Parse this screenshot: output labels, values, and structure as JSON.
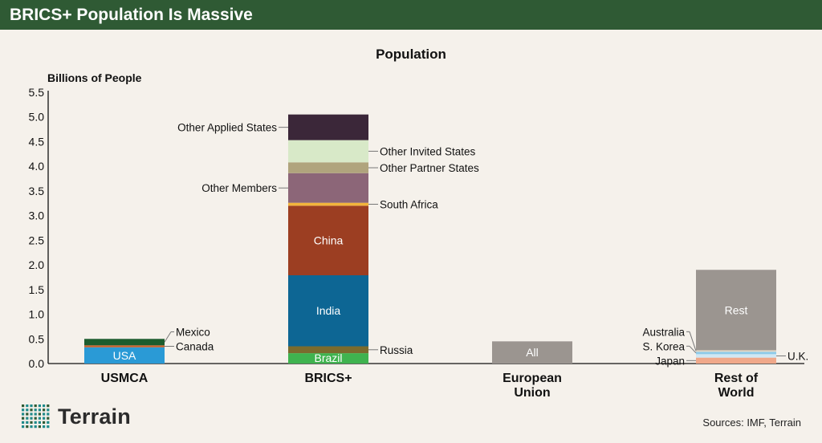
{
  "banner": {
    "title": "BRICS+ Population Is Massive"
  },
  "chart_data": {
    "type": "bar",
    "stacked": true,
    "title": "Population",
    "ylabel": "Billions of People",
    "xlabel": "",
    "ylim": [
      0,
      5.5
    ],
    "yticks": [
      "0.0",
      "0.5",
      "1.0",
      "1.5",
      "2.0",
      "2.5",
      "3.0",
      "3.5",
      "4.0",
      "4.5",
      "5.0",
      "5.5"
    ],
    "grid": false,
    "groups": [
      {
        "label": [
          "USMCA"
        ],
        "segments": [
          {
            "name": "USA",
            "value": 0.33,
            "color": "#2a9ad6",
            "label": "USA",
            "label_pos": "inside"
          },
          {
            "name": "Canada",
            "value": 0.04,
            "color": "#c8612b",
            "label": "Canada",
            "label_pos": "right"
          },
          {
            "name": "Mexico",
            "value": 0.13,
            "color": "#1c5c2e",
            "label": "Mexico",
            "label_pos": "right"
          }
        ]
      },
      {
        "label": [
          "BRICS+"
        ],
        "segments": [
          {
            "name": "Brazil",
            "value": 0.21,
            "color": "#3fb34f",
            "label": "Brazil",
            "label_pos": "inside"
          },
          {
            "name": "Russia",
            "value": 0.14,
            "color": "#7a6b2e",
            "label": "Russia",
            "label_pos": "right"
          },
          {
            "name": "India",
            "value": 1.44,
            "color": "#0d6694",
            "label": "India",
            "label_pos": "inside"
          },
          {
            "name": "China",
            "value": 1.41,
            "color": "#9c3e22",
            "label": "China",
            "label_pos": "inside"
          },
          {
            "name": "South Africa",
            "value": 0.06,
            "color": "#f2b43c",
            "label": "South Africa",
            "label_pos": "right"
          },
          {
            "name": "Other Members",
            "value": 0.6,
            "color": "#8c6678",
            "label": "Other Members",
            "label_pos": "left"
          },
          {
            "name": "Other Partner States",
            "value": 0.22,
            "color": "#b0a47d",
            "label": "Other Partner States",
            "label_pos": "right"
          },
          {
            "name": "Other Invited States",
            "value": 0.45,
            "color": "#d8e9c8",
            "label": "Other Invited States",
            "label_pos": "right"
          },
          {
            "name": "Other Applied States",
            "value": 0.52,
            "color": "#3b2739",
            "label": "Other Applied States",
            "label_pos": "left"
          }
        ]
      },
      {
        "label": [
          "European",
          "Union"
        ],
        "segments": [
          {
            "name": "All",
            "value": 0.45,
            "color": "#9b9590",
            "label": "All",
            "label_pos": "inside"
          }
        ]
      },
      {
        "label": [
          "Rest of",
          "World"
        ],
        "segments": [
          {
            "name": "Japan",
            "value": 0.12,
            "color": "#f0a88a",
            "label": "Japan",
            "label_pos": "left"
          },
          {
            "name": "U.K.",
            "value": 0.07,
            "color": "#cfe8f5",
            "label": "U.K.",
            "label_pos": "right"
          },
          {
            "name": "S. Korea",
            "value": 0.05,
            "color": "#8ecbe9",
            "label": "S. Korea",
            "label_pos": "left"
          },
          {
            "name": "Australia",
            "value": 0.03,
            "color": "#e3d8c6",
            "label": "Australia",
            "label_pos": "left"
          },
          {
            "name": "Rest",
            "value": 1.63,
            "color": "#9b9590",
            "label": "Rest",
            "label_pos": "inside"
          }
        ]
      }
    ]
  },
  "logo": {
    "text": "Terrain",
    "color": "#1f8a8a",
    "icon": "grid-dots-icon"
  },
  "footer": {
    "sources": "Sources: IMF, Terrain"
  }
}
